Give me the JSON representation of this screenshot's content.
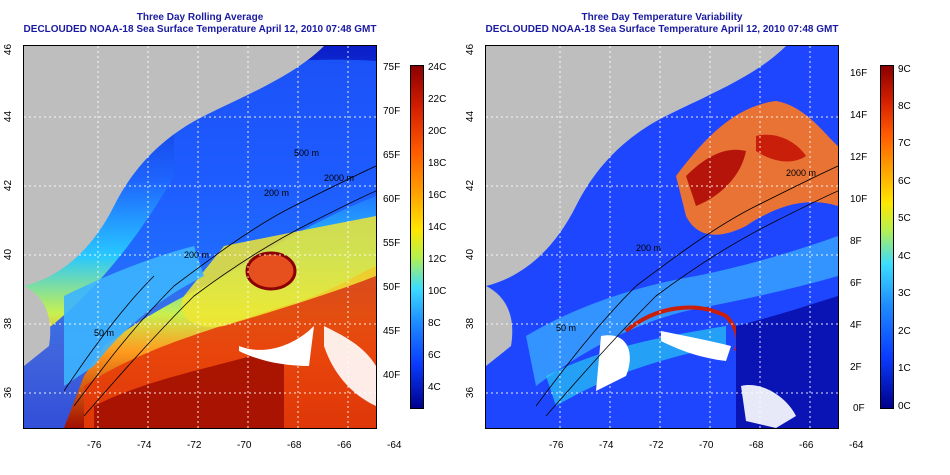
{
  "left_panel": {
    "title_line1": "Three Day Rolling Average",
    "title_line2": "DECLOUDED NOAA-18 Sea Surface Temperature April 12, 2010 07:48 GMT",
    "lon_ticks": [
      "-76",
      "-74",
      "-72",
      "-70",
      "-68",
      "-66",
      "-64"
    ],
    "lat_ticks": [
      "46",
      "44",
      "42",
      "40",
      "38",
      "36"
    ],
    "contour_labels": [
      "200 m",
      "200 m",
      "50 m",
      "500 m",
      "2000 m"
    ],
    "colorbar": {
      "fahrenheit": [
        "75F",
        "70F",
        "65F",
        "60F",
        "55F",
        "50F",
        "45F",
        "40F"
      ],
      "celsius": [
        "24C",
        "22C",
        "20C",
        "18C",
        "16C",
        "14C",
        "12C",
        "10C",
        "8C",
        "6C",
        "4C"
      ]
    }
  },
  "right_panel": {
    "title_line1": "Three Day Temperature Variability",
    "title_line2": "DECLOUDED NOAA-18 Sea Surface Temperature April 12, 2010 07:48 GMT",
    "lon_ticks": [
      "-76",
      "-74",
      "-72",
      "-70",
      "-68",
      "-66",
      "-64"
    ],
    "lat_ticks": [
      "46",
      "44",
      "42",
      "40",
      "38",
      "36"
    ],
    "contour_labels": [
      "200 m",
      "50 m",
      "2000 m"
    ],
    "colorbar": {
      "fahrenheit": [
        "16F",
        "14F",
        "12F",
        "10F",
        "8F",
        "6F",
        "4F",
        "2F",
        "0F"
      ],
      "celsius": [
        "9C",
        "8C",
        "7C",
        "6C",
        "5C",
        "4C",
        "3C",
        "2C",
        "1C",
        "0C"
      ]
    }
  },
  "colors": {
    "title": "#1a1aa0",
    "land": "#bebebe",
    "ocean_deep_blue": "#1e3cff",
    "warm_red": "#c81e0a",
    "colorbar_top": "#8b0000",
    "colorbar_bottom": "#00008b"
  }
}
